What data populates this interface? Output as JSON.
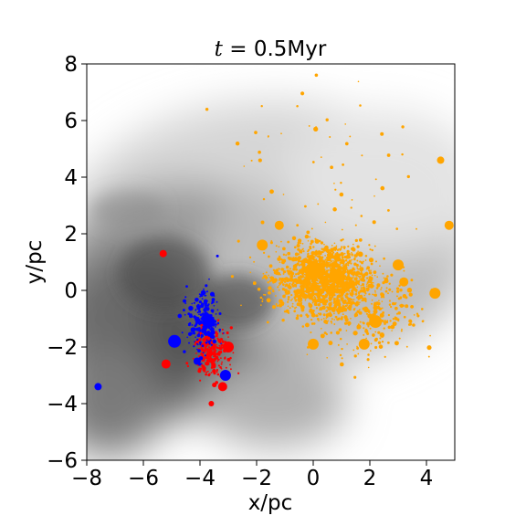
{
  "chart_data": {
    "type": "scatter",
    "title": "t = 0.5Myr",
    "title_parts": {
      "symbol": "t",
      "rest": " = 0.5Myr"
    },
    "xlabel": "x/pc",
    "ylabel": "y/pc",
    "xlim": [
      -8,
      5
    ],
    "ylim": [
      -6,
      8
    ],
    "xticks": [
      -8,
      -6,
      -4,
      -2,
      0,
      2,
      4
    ],
    "yticks": [
      -6,
      -4,
      -2,
      0,
      2,
      4,
      6,
      8
    ],
    "xtick_labels": [
      "−8",
      "−6",
      "−4",
      "−2",
      "0",
      "2",
      "4"
    ],
    "ytick_labels": [
      "−6",
      "−4",
      "−2",
      "0",
      "2",
      "4",
      "6",
      "8"
    ],
    "background": "grayscale gas density map",
    "grid": false,
    "colors": {
      "orange": "#ffa500",
      "red": "#ff0000",
      "blue": "#0000ff"
    },
    "clusters": [
      {
        "color": "orange",
        "center": [
          0.3,
          0.4
        ],
        "spread": [
          1.4,
          1.0
        ],
        "count": 1400
      },
      {
        "color": "orange",
        "center": [
          1.8,
          -0.6
        ],
        "spread": [
          1.6,
          1.4
        ],
        "count": 350
      },
      {
        "color": "orange",
        "center": [
          0.5,
          4.5
        ],
        "spread": [
          3.0,
          2.5
        ],
        "count": 60
      },
      {
        "color": "red",
        "center": [
          -3.6,
          -2.2
        ],
        "spread": [
          0.5,
          0.7
        ],
        "count": 260
      },
      {
        "color": "blue",
        "center": [
          -3.9,
          -1.1
        ],
        "spread": [
          0.45,
          0.9
        ],
        "count": 260
      }
    ],
    "big_stars": [
      {
        "color": "orange",
        "x": 0.0,
        "y": 0.7,
        "size": 9
      },
      {
        "color": "orange",
        "x": 0.8,
        "y": 0.5,
        "size": 8
      },
      {
        "color": "orange",
        "x": -1.8,
        "y": 1.6,
        "size": 6
      },
      {
        "color": "orange",
        "x": -1.2,
        "y": 2.3,
        "size": 5
      },
      {
        "color": "orange",
        "x": 2.2,
        "y": -1.1,
        "size": 7
      },
      {
        "color": "orange",
        "x": 3.0,
        "y": 0.9,
        "size": 6
      },
      {
        "color": "orange",
        "x": 4.3,
        "y": -0.1,
        "size": 6
      },
      {
        "color": "orange",
        "x": 3.2,
        "y": 0.3,
        "size": 5
      },
      {
        "color": "orange",
        "x": 0.0,
        "y": -1.9,
        "size": 6
      },
      {
        "color": "orange",
        "x": 1.8,
        "y": -1.9,
        "size": 6
      },
      {
        "color": "orange",
        "x": 4.8,
        "y": 2.3,
        "size": 5
      },
      {
        "color": "orange",
        "x": 4.5,
        "y": 4.6,
        "size": 4
      },
      {
        "color": "red",
        "x": -5.3,
        "y": 1.3,
        "size": 4
      },
      {
        "color": "red",
        "x": -5.2,
        "y": -2.6,
        "size": 5
      },
      {
        "color": "red",
        "x": -3.0,
        "y": -2.0,
        "size": 6
      },
      {
        "color": "red",
        "x": -3.2,
        "y": -3.4,
        "size": 5
      },
      {
        "color": "red",
        "x": -3.6,
        "y": -4.0,
        "size": 3
      },
      {
        "color": "blue",
        "x": -4.9,
        "y": -1.8,
        "size": 7
      },
      {
        "color": "blue",
        "x": -3.7,
        "y": -1.1,
        "size": 7
      },
      {
        "color": "blue",
        "x": -3.1,
        "y": -3.0,
        "size": 6
      },
      {
        "color": "blue",
        "x": -4.1,
        "y": -2.5,
        "size": 4
      },
      {
        "color": "blue",
        "x": -7.6,
        "y": -3.4,
        "size": 4
      }
    ]
  }
}
